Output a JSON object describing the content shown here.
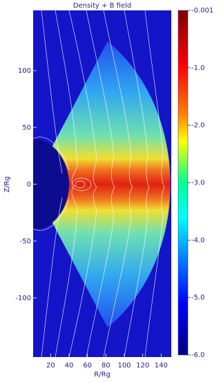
{
  "chart_data": {
    "type": "colormap",
    "title": "Density + B field",
    "xlabel": "R/Rg",
    "ylabel": "Z/Rg",
    "xlim": [
      1,
      151
    ],
    "xticks": [
      20,
      40,
      60,
      80,
      100,
      120,
      140
    ],
    "ylim": [
      -152,
      153
    ],
    "yticks": [
      -100,
      -50,
      0,
      50,
      100
    ],
    "colorbar": {
      "lim": [
        -6,
        -0.001
      ],
      "ticks": [
        -0.001,
        {
          "value": -1,
          "label": "-1.0"
        },
        {
          "value": -2,
          "label": "-2.0"
        },
        {
          "value": -3,
          "label": "-3.0"
        },
        {
          "value": -4,
          "label": "-4.0"
        },
        {
          "value": -5,
          "label": "-5.0"
        },
        {
          "value": -6,
          "label": "-6.0"
        }
      ]
    }
  }
}
